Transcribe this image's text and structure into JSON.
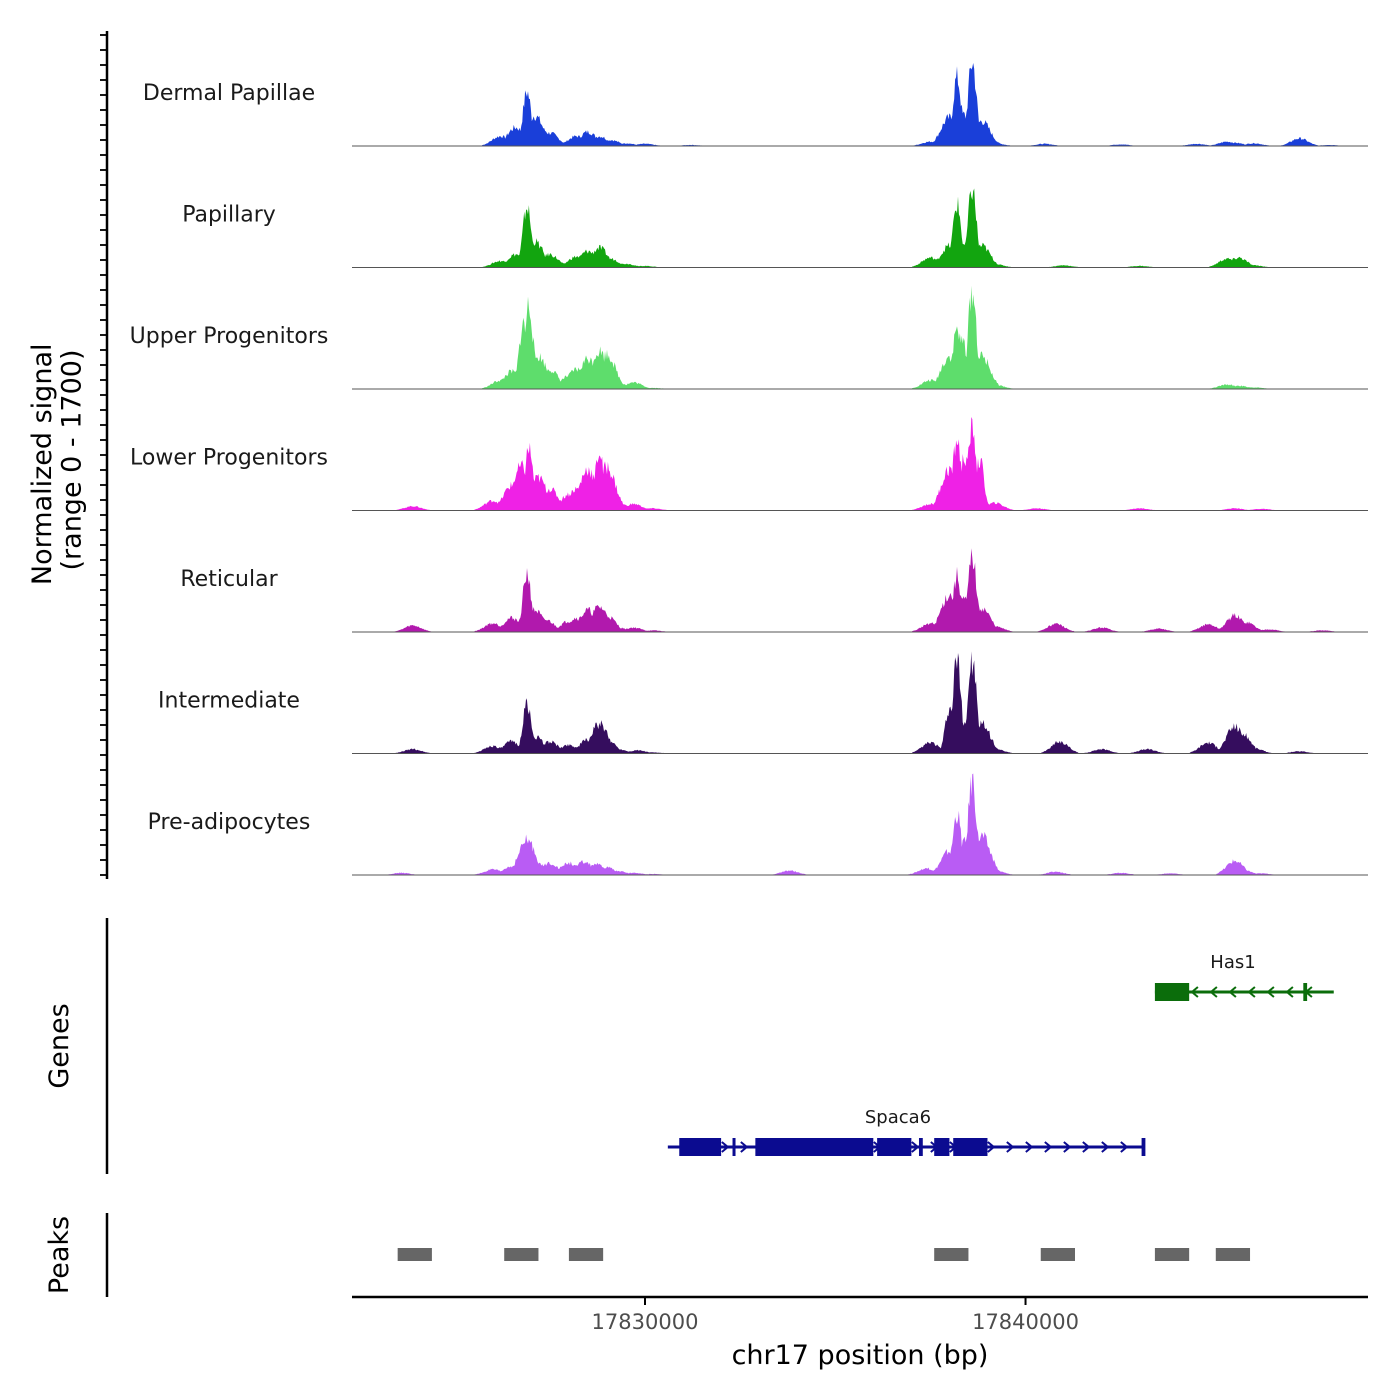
{
  "chart_data": {
    "type": "area",
    "title": "",
    "chromosome": "chr17",
    "xlabel": "chr17 position (bp)",
    "xlim": [
      17822300,
      17849000
    ],
    "xticks": [
      17830000,
      17840000
    ],
    "xtick_labels": [
      "17830000",
      "17840000"
    ],
    "coverage": {
      "ylabel": "Normalized signal\n(range 0 - 1700)",
      "ylabel_lines": [
        "Normalized signal",
        "(range 0 - 1700)"
      ],
      "ylim": [
        0,
        1700
      ],
      "tracks": [
        {
          "name": "Dermal Papillae",
          "color": "#1a3fd9",
          "peaks": [
            [
              17823500,
              0
            ],
            [
              17826200,
              90
            ],
            [
              17826600,
              170
            ],
            [
              17826900,
              500
            ],
            [
              17827100,
              280
            ],
            [
              17827300,
              150
            ],
            [
              17827500,
              120
            ],
            [
              17828200,
              90
            ],
            [
              17828500,
              130
            ],
            [
              17828800,
              90
            ],
            [
              17829100,
              55
            ],
            [
              17829500,
              25
            ],
            [
              17830000,
              20
            ],
            [
              17831200,
              10
            ],
            [
              17837500,
              40
            ],
            [
              17838000,
              260
            ],
            [
              17838200,
              630
            ],
            [
              17838350,
              290
            ],
            [
              17838600,
              770
            ],
            [
              17838850,
              230
            ],
            [
              17839200,
              25
            ],
            [
              17840500,
              20
            ],
            [
              17842500,
              15
            ],
            [
              17844500,
              20
            ],
            [
              17845300,
              40
            ],
            [
              17845500,
              30
            ],
            [
              17846000,
              25
            ],
            [
              17847200,
              70
            ],
            [
              17848000,
              10
            ]
          ]
        },
        {
          "name": "Papillary",
          "color": "#12a50f",
          "peaks": [
            [
              17823500,
              0
            ],
            [
              17826200,
              60
            ],
            [
              17826600,
              120
            ],
            [
              17826900,
              560
            ],
            [
              17827100,
              240
            ],
            [
              17827300,
              110
            ],
            [
              17827500,
              120
            ],
            [
              17828200,
              100
            ],
            [
              17828500,
              150
            ],
            [
              17828800,
              180
            ],
            [
              17829100,
              80
            ],
            [
              17829500,
              35
            ],
            [
              17830000,
              15
            ],
            [
              17837500,
              90
            ],
            [
              17838000,
              200
            ],
            [
              17838200,
              580
            ],
            [
              17838350,
              210
            ],
            [
              17838600,
              720
            ],
            [
              17838850,
              200
            ],
            [
              17839200,
              30
            ],
            [
              17841000,
              20
            ],
            [
              17843000,
              15
            ],
            [
              17845300,
              80
            ],
            [
              17845600,
              90
            ],
            [
              17846000,
              20
            ]
          ]
        },
        {
          "name": "Upper Progenitors",
          "color": "#5edd6c",
          "peaks": [
            [
              17823500,
              0
            ],
            [
              17826200,
              80
            ],
            [
              17826500,
              160
            ],
            [
              17826800,
              600
            ],
            [
              17826950,
              780
            ],
            [
              17827200,
              300
            ],
            [
              17827500,
              180
            ],
            [
              17828000,
              120
            ],
            [
              17828200,
              180
            ],
            [
              17828500,
              280
            ],
            [
              17828800,
              350
            ],
            [
              17829000,
              320
            ],
            [
              17829300,
              60
            ],
            [
              17829700,
              60
            ],
            [
              17830200,
              10
            ],
            [
              17837500,
              80
            ],
            [
              17838000,
              300
            ],
            [
              17838200,
              560
            ],
            [
              17838350,
              450
            ],
            [
              17838600,
              900
            ],
            [
              17838850,
              300
            ],
            [
              17839200,
              40
            ],
            [
              17845300,
              40
            ],
            [
              17845600,
              30
            ],
            [
              17846000,
              15
            ]
          ]
        },
        {
          "name": "Lower Progenitors",
          "color": "#ef21e6",
          "peaks": [
            [
              17823900,
              40
            ],
            [
              17824300,
              0
            ],
            [
              17826000,
              90
            ],
            [
              17826500,
              230
            ],
            [
              17826750,
              400
            ],
            [
              17826950,
              570
            ],
            [
              17827200,
              300
            ],
            [
              17827500,
              200
            ],
            [
              17828000,
              150
            ],
            [
              17828200,
              200
            ],
            [
              17828500,
              380
            ],
            [
              17828800,
              540
            ],
            [
              17829000,
              400
            ],
            [
              17829300,
              70
            ],
            [
              17829700,
              60
            ],
            [
              17830200,
              20
            ],
            [
              17837500,
              60
            ],
            [
              17838000,
              380
            ],
            [
              17838200,
              650
            ],
            [
              17838400,
              500
            ],
            [
              17838600,
              770
            ],
            [
              17838800,
              460
            ],
            [
              17839200,
              70
            ],
            [
              17840300,
              20
            ],
            [
              17843000,
              20
            ],
            [
              17845500,
              20
            ],
            [
              17846200,
              15
            ]
          ]
        },
        {
          "name": "Reticular",
          "color": "#b119ad",
          "peaks": [
            [
              17823900,
              60
            ],
            [
              17824300,
              0
            ],
            [
              17826000,
              80
            ],
            [
              17826500,
              130
            ],
            [
              17826900,
              540
            ],
            [
              17827100,
              200
            ],
            [
              17827400,
              110
            ],
            [
              17828000,
              100
            ],
            [
              17828200,
              130
            ],
            [
              17828500,
              200
            ],
            [
              17828800,
              230
            ],
            [
              17829000,
              150
            ],
            [
              17829300,
              40
            ],
            [
              17829700,
              40
            ],
            [
              17830200,
              15
            ],
            [
              17837500,
              80
            ],
            [
              17838000,
              340
            ],
            [
              17838200,
              510
            ],
            [
              17838350,
              300
            ],
            [
              17838600,
              690
            ],
            [
              17838850,
              220
            ],
            [
              17839200,
              50
            ],
            [
              17840800,
              75
            ],
            [
              17842000,
              40
            ],
            [
              17843500,
              30
            ],
            [
              17844800,
              70
            ],
            [
              17845500,
              150
            ],
            [
              17845800,
              90
            ],
            [
              17846400,
              25
            ],
            [
              17847800,
              15
            ]
          ]
        },
        {
          "name": "Intermediate",
          "color": "#350d5e",
          "peaks": [
            [
              17823900,
              40
            ],
            [
              17824300,
              0
            ],
            [
              17826000,
              70
            ],
            [
              17826500,
              110
            ],
            [
              17826900,
              460
            ],
            [
              17827100,
              160
            ],
            [
              17827500,
              110
            ],
            [
              17828000,
              80
            ],
            [
              17828500,
              130
            ],
            [
              17828800,
              270
            ],
            [
              17829000,
              130
            ],
            [
              17829300,
              40
            ],
            [
              17829800,
              30
            ],
            [
              17830200,
              10
            ],
            [
              17837500,
              100
            ],
            [
              17838000,
              410
            ],
            [
              17838200,
              850
            ],
            [
              17838350,
              300
            ],
            [
              17838600,
              870
            ],
            [
              17838850,
              270
            ],
            [
              17839200,
              40
            ],
            [
              17840900,
              110
            ],
            [
              17842000,
              40
            ],
            [
              17843200,
              40
            ],
            [
              17844800,
              100
            ],
            [
              17845500,
              250
            ],
            [
              17845700,
              180
            ],
            [
              17846000,
              50
            ],
            [
              17847200,
              20
            ]
          ]
        },
        {
          "name": "Pre-adipocytes",
          "color": "#b95cf4",
          "peaks": [
            [
              17823600,
              20
            ],
            [
              17824300,
              0
            ],
            [
              17826000,
              50
            ],
            [
              17826500,
              80
            ],
            [
              17826900,
              320
            ],
            [
              17827100,
              130
            ],
            [
              17827500,
              110
            ],
            [
              17828000,
              110
            ],
            [
              17828400,
              120
            ],
            [
              17828700,
              100
            ],
            [
              17829000,
              70
            ],
            [
              17829300,
              35
            ],
            [
              17829700,
              20
            ],
            [
              17830200,
              10
            ],
            [
              17833800,
              40
            ],
            [
              17837400,
              60
            ],
            [
              17838000,
              220
            ],
            [
              17838200,
              570
            ],
            [
              17838350,
              310
            ],
            [
              17838600,
              880
            ],
            [
              17838850,
              360
            ],
            [
              17839200,
              40
            ],
            [
              17840800,
              30
            ],
            [
              17842500,
              20
            ],
            [
              17843800,
              15
            ],
            [
              17845500,
              130
            ],
            [
              17845700,
              50
            ],
            [
              17846200,
              15
            ]
          ]
        }
      ]
    },
    "genes": {
      "ylabel": "Genes",
      "items": [
        {
          "name": "Has1",
          "strand": "-",
          "color": "#0b6d0b",
          "start": 17843400,
          "end": 17848100,
          "exons": [
            [
              17843400,
              17844300
            ],
            [
              17847300,
              17847400
            ]
          ]
        },
        {
          "name": "Spaca6",
          "strand": "+",
          "color": "#0b0b90",
          "start": 17830600,
          "end": 17843100,
          "exons": [
            [
              17830900,
              17832000
            ],
            [
              17832300,
              17832350
            ],
            [
              17832900,
              17836000
            ],
            [
              17836100,
              17837000
            ],
            [
              17837200,
              17837300
            ],
            [
              17837600,
              17838000
            ],
            [
              17838100,
              17839000
            ],
            [
              17843050,
              17843150
            ]
          ]
        }
      ]
    },
    "peaks": {
      "ylabel": "Peaks",
      "color": "#666666",
      "regions": [
        [
          17823500,
          17824400
        ],
        [
          17826300,
          17827200
        ],
        [
          17828000,
          17828900
        ],
        [
          17837600,
          17838500
        ],
        [
          17840400,
          17841300
        ],
        [
          17843400,
          17844300
        ],
        [
          17845000,
          17845900
        ]
      ]
    }
  }
}
